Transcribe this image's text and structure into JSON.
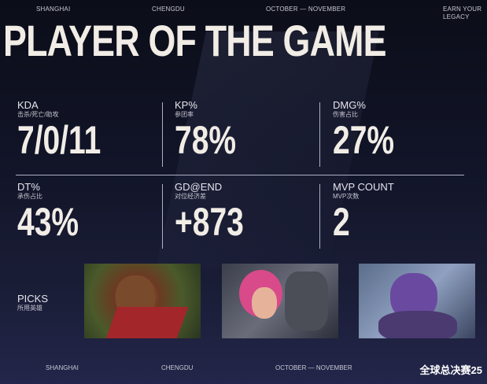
{
  "header": {
    "items": [
      "SHANGHAI",
      "CHENGDU",
      "OCTOBER — NOVEMBER"
    ],
    "tagline_1": "EARN YOUR",
    "tagline_2": "LEGACY"
  },
  "title": "PLAYER OF THE GAME",
  "stats": [
    {
      "label": "KDA",
      "sub": "击杀/死亡/助攻",
      "value": "7/0/11"
    },
    {
      "label": "KP%",
      "sub": "参团率",
      "value": "78%"
    },
    {
      "label": "DMG%",
      "sub": "伤害占比",
      "value": "27%"
    },
    {
      "label": "DT%",
      "sub": "承伤占比",
      "value": "43%"
    },
    {
      "label": "GD@END",
      "sub": "对位经济差",
      "value": "+873"
    },
    {
      "label": "MVP COUNT",
      "sub": "MVP次数",
      "value": "2"
    }
  ],
  "picks": {
    "label": "PICKS",
    "sub": "所用英雄",
    "champions": [
      "Wukong",
      "Vi",
      "Dr. Mundo"
    ]
  },
  "footer": {
    "items": [
      "SHANGHAI",
      "CHENGDU",
      "OCTOBER — NOVEMBER"
    ],
    "logo": "全球总决赛25"
  }
}
